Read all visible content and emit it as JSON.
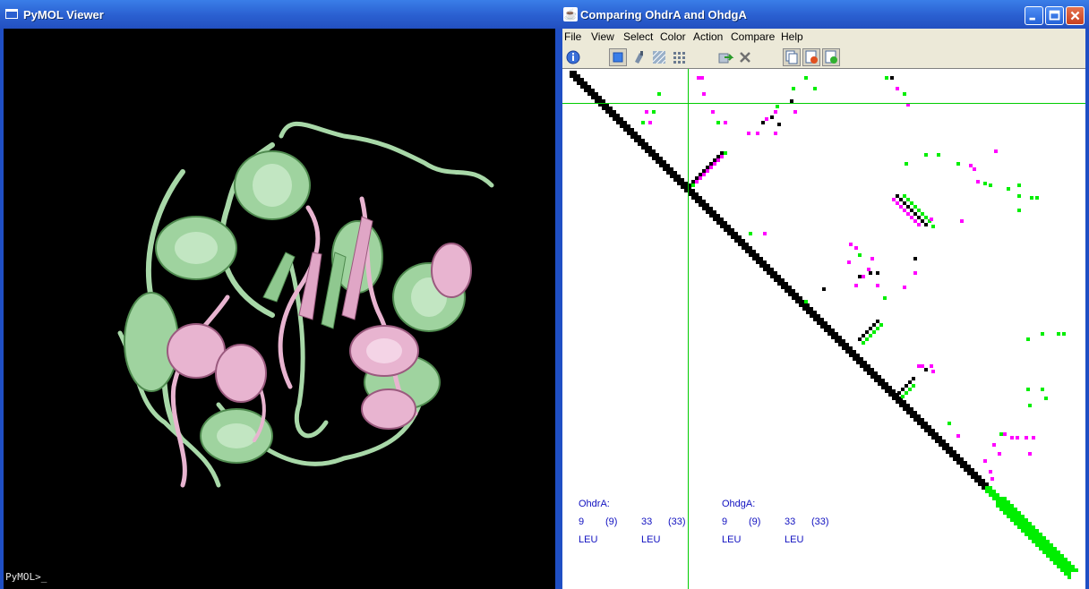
{
  "pymol": {
    "title": "PyMOL Viewer",
    "prompt": "PyMOL>_",
    "structure_colors": {
      "chain_a": "#a8d8a8",
      "chain_b": "#e8b4d0"
    }
  },
  "compare": {
    "title": "Comparing OhdrA and OhdgA",
    "menu": [
      "File",
      "View",
      "Select",
      "Color",
      "Action",
      "Compare",
      "Help"
    ],
    "toolbar_icons": [
      "info-icon",
      "select-box-icon",
      "paint-icon",
      "hatch-icon",
      "grid-icon",
      "arrow-icon",
      "close-x-icon",
      "copy-icon",
      "remove-icon",
      "add-icon"
    ],
    "info": {
      "a_label": "OhdrA:",
      "a_res1": "9",
      "a_res1_seq": "(9)",
      "a_res2": "33",
      "a_res2_seq": "(33)",
      "a_name1": "LEU",
      "a_name2": "LEU",
      "b_label": "OhdgA:",
      "b_res1": "9",
      "b_res1_seq": "(9)",
      "b_res2": "33",
      "b_res2_seq": "(33)",
      "b_name1": "LEU",
      "b_name2": "LEU"
    },
    "colors": {
      "both": "#000000",
      "only_a": "#00ee00",
      "only_b": "#ff00ff",
      "cursor": "#00cc00"
    }
  }
}
